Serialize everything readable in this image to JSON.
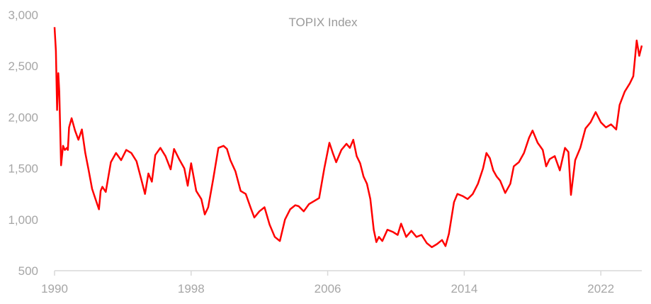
{
  "chart_data": {
    "type": "line",
    "title": "TOPIX Index",
    "xlabel": "",
    "ylabel": "",
    "xlim": [
      1990,
      2024.4
    ],
    "ylim": [
      500,
      3000
    ],
    "x_ticks": [
      1990,
      1998,
      2006,
      2014,
      2022
    ],
    "y_ticks": [
      500,
      1000,
      1500,
      2000,
      2500,
      3000
    ],
    "y_tick_labels": [
      "500",
      "1,000",
      "1,500",
      "2,000",
      "2,500",
      "3,000"
    ],
    "x_tick_labels": [
      "1990",
      "1998",
      "2006",
      "2014",
      "2022"
    ],
    "grid": false,
    "legend": "none",
    "line_color": "#ff0000",
    "axis_color": "#d9d9d9",
    "series": [
      {
        "x": [
          1990.0,
          1990.08,
          1990.15,
          1990.22,
          1990.28,
          1990.38,
          1990.5,
          1990.6,
          1990.72,
          1990.78,
          1990.85,
          1991.0,
          1991.2,
          1991.4,
          1991.6,
          1991.8,
          1992.0,
          1992.2,
          1992.4,
          1992.6,
          1992.7,
          1992.8,
          1993.0,
          1993.3,
          1993.6,
          1993.9,
          1994.2,
          1994.5,
          1994.8,
          1995.1,
          1995.3,
          1995.5,
          1995.7,
          1995.9,
          1996.2,
          1996.5,
          1996.8,
          1997.0,
          1997.3,
          1997.6,
          1997.8,
          1998.0,
          1998.3,
          1998.6,
          1998.8,
          1999.0,
          1999.3,
          1999.6,
          1999.9,
          2000.1,
          2000.3,
          2000.6,
          2000.9,
          2001.2,
          2001.5,
          2001.7,
          2002.0,
          2002.3,
          2002.6,
          2002.9,
          2003.2,
          2003.5,
          2003.8,
          2004.1,
          2004.3,
          2004.6,
          2004.9,
          2005.2,
          2005.5,
          2005.8,
          2006.1,
          2006.3,
          2006.5,
          2006.8,
          2007.1,
          2007.3,
          2007.5,
          2007.7,
          2007.9,
          2008.1,
          2008.3,
          2008.5,
          2008.7,
          2008.85,
          2009.0,
          2009.2,
          2009.5,
          2009.8,
          2010.1,
          2010.3,
          2010.6,
          2010.9,
          2011.2,
          2011.5,
          2011.8,
          2012.1,
          2012.4,
          2012.7,
          2012.9,
          2013.1,
          2013.4,
          2013.6,
          2013.9,
          2014.2,
          2014.5,
          2014.8,
          2015.1,
          2015.3,
          2015.5,
          2015.7,
          2015.9,
          2016.1,
          2016.4,
          2016.7,
          2016.9,
          2017.2,
          2017.5,
          2017.8,
          2018.0,
          2018.3,
          2018.6,
          2018.8,
          2019.0,
          2019.3,
          2019.6,
          2019.9,
          2020.1,
          2020.25,
          2020.5,
          2020.8,
          2021.1,
          2021.4,
          2021.7,
          2022.0,
          2022.3,
          2022.6,
          2022.9,
          2023.1,
          2023.4,
          2023.7,
          2023.9,
          2024.1,
          2024.25,
          2024.4
        ],
        "values": [
          2880,
          2650,
          2070,
          2430,
          2250,
          1530,
          1720,
          1680,
          1700,
          1680,
          1900,
          1990,
          1870,
          1780,
          1880,
          1650,
          1480,
          1300,
          1200,
          1100,
          1280,
          1320,
          1270,
          1560,
          1650,
          1580,
          1680,
          1650,
          1570,
          1380,
          1250,
          1450,
          1370,
          1630,
          1700,
          1620,
          1490,
          1690,
          1590,
          1500,
          1330,
          1550,
          1280,
          1200,
          1050,
          1120,
          1400,
          1700,
          1720,
          1690,
          1580,
          1470,
          1280,
          1250,
          1110,
          1020,
          1080,
          1120,
          950,
          830,
          790,
          1000,
          1100,
          1140,
          1130,
          1080,
          1150,
          1180,
          1210,
          1500,
          1750,
          1650,
          1560,
          1680,
          1740,
          1700,
          1780,
          1620,
          1550,
          1420,
          1350,
          1200,
          900,
          780,
          830,
          790,
          900,
          880,
          850,
          960,
          830,
          890,
          830,
          850,
          770,
          730,
          760,
          800,
          740,
          860,
          1170,
          1250,
          1230,
          1200,
          1250,
          1350,
          1500,
          1650,
          1600,
          1480,
          1420,
          1380,
          1260,
          1350,
          1520,
          1560,
          1650,
          1800,
          1870,
          1750,
          1680,
          1520,
          1590,
          1620,
          1480,
          1700,
          1660,
          1240,
          1580,
          1700,
          1890,
          1950,
          2050,
          1950,
          1900,
          1930,
          1880,
          2120,
          2250,
          2330,
          2400,
          2750,
          2600,
          2700
        ]
      }
    ]
  }
}
